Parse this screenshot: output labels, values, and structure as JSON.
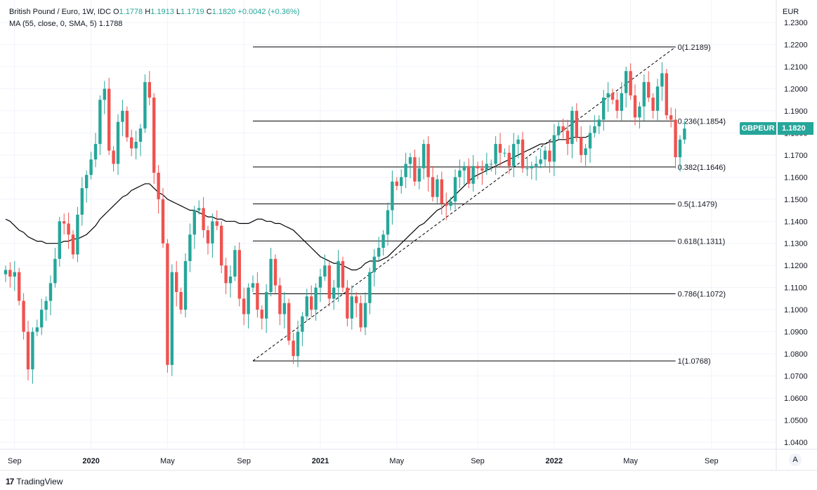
{
  "legend": {
    "title": "British Pound / Euro, 1W, IDC",
    "o_label": "O",
    "o_value": "1.1778",
    "h_label": "H",
    "h_value": "1.1913",
    "l_label": "L",
    "l_value": "1.1719",
    "c_label": "C",
    "c_value": "1.1820",
    "change": "+0.0042 (+0.36%)",
    "ma_label": "MA (55, close, 0, SMA, 5)",
    "ma_value": "1.1788"
  },
  "currency": "EUR",
  "symbol_badge": "GBPEUR",
  "price_badge": "1.1820",
  "footer": {
    "logo": "17",
    "brand": "TradingView"
  },
  "auto_button": "A",
  "colors": {
    "up": "#26a69a",
    "down": "#ef5350",
    "grid": "#f0f3fa",
    "line": "#000000",
    "axis_text": "#131722"
  },
  "chart_data": {
    "type": "candlestick",
    "interval": "1W",
    "ylim": [
      1.035,
      1.235
    ],
    "yticks": [
      "1.2300",
      "1.2200",
      "1.2100",
      "1.2000",
      "1.1900",
      "1.1800",
      "1.1700",
      "1.1600",
      "1.1500",
      "1.1400",
      "1.1300",
      "1.1200",
      "1.1100",
      "1.1000",
      "1.0900",
      "1.0800",
      "1.0700",
      "1.0600",
      "1.0500",
      "1.0400"
    ],
    "x_labels": [
      {
        "label": "Sep",
        "week": 2
      },
      {
        "label": "2020",
        "week": 19
      },
      {
        "label": "May",
        "week": 36
      },
      {
        "label": "Sep",
        "week": 53
      },
      {
        "label": "2021",
        "week": 70
      },
      {
        "label": "May",
        "week": 87
      },
      {
        "label": "Sep",
        "week": 105
      },
      {
        "label": "2022",
        "week": 122
      },
      {
        "label": "May",
        "week": 139
      },
      {
        "label": "Sep",
        "week": 157
      }
    ],
    "closes": [
      1.118,
      1.115,
      1.117,
      1.104,
      1.09,
      1.073,
      1.09,
      1.092,
      1.1,
      1.104,
      1.112,
      1.123,
      1.14,
      1.139,
      1.134,
      1.125,
      1.143,
      1.155,
      1.161,
      1.168,
      1.175,
      1.195,
      1.2,
      1.172,
      1.166,
      1.185,
      1.19,
      1.178,
      1.173,
      1.176,
      1.182,
      1.203,
      1.196,
      1.162,
      1.15,
      1.13,
      1.075,
      1.117,
      1.108,
      1.1,
      1.122,
      1.134,
      1.145,
      1.146,
      1.136,
      1.13,
      1.14,
      1.138,
      1.12,
      1.112,
      1.115,
      1.127,
      1.105,
      1.098,
      1.11,
      1.112,
      1.1,
      1.096,
      1.108,
      1.123,
      1.111,
      1.098,
      1.103,
      1.086,
      1.079,
      1.09,
      1.097,
      1.106,
      1.1,
      1.11,
      1.115,
      1.12,
      1.105,
      1.11,
      1.122,
      1.11,
      1.096,
      1.106,
      1.103,
      1.092,
      1.103,
      1.117,
      1.124,
      1.128,
      1.134,
      1.145,
      1.158,
      1.156,
      1.16,
      1.166,
      1.169,
      1.158,
      1.164,
      1.175,
      1.16,
      1.151,
      1.159,
      1.148,
      1.147,
      1.149,
      1.16,
      1.163,
      1.165,
      1.157,
      1.165,
      1.164,
      1.163,
      1.166,
      1.166,
      1.175,
      1.171,
      1.171,
      1.165,
      1.175,
      1.177,
      1.164,
      1.164,
      1.165,
      1.166,
      1.168,
      1.172,
      1.167,
      1.179,
      1.183,
      1.181,
      1.175,
      1.19,
      1.178,
      1.17,
      1.173,
      1.18,
      1.183,
      1.186,
      1.196,
      1.198,
      1.195,
      1.19,
      1.198,
      1.208,
      1.197,
      1.187,
      1.192,
      1.203,
      1.196,
      1.19,
      1.201,
      1.207,
      1.188,
      1.186,
      1.169,
      1.177,
      1.182
    ],
    "ma55": [
      1.141,
      1.14,
      1.138,
      1.136,
      1.135,
      1.133,
      1.132,
      1.131,
      1.131,
      1.13,
      1.13,
      1.13,
      1.13,
      1.131,
      1.131,
      1.132,
      1.132,
      1.133,
      1.134,
      1.136,
      1.138,
      1.141,
      1.143,
      1.145,
      1.147,
      1.149,
      1.151,
      1.152,
      1.154,
      1.155,
      1.156,
      1.157,
      1.157,
      1.155,
      1.153,
      1.152,
      1.15,
      1.149,
      1.148,
      1.147,
      1.146,
      1.145,
      1.145,
      1.144,
      1.143,
      1.142,
      1.142,
      1.141,
      1.141,
      1.14,
      1.14,
      1.14,
      1.139,
      1.139,
      1.139,
      1.14,
      1.141,
      1.141,
      1.14,
      1.14,
      1.139,
      1.139,
      1.138,
      1.137,
      1.136,
      1.134,
      1.132,
      1.13,
      1.128,
      1.126,
      1.124,
      1.123,
      1.122,
      1.121,
      1.121,
      1.12,
      1.119,
      1.118,
      1.118,
      1.119,
      1.121,
      1.122,
      1.122,
      1.122,
      1.123,
      1.124,
      1.126,
      1.128,
      1.13,
      1.132,
      1.134,
      1.136,
      1.138,
      1.139,
      1.141,
      1.143,
      1.145,
      1.146,
      1.148,
      1.15,
      1.152,
      1.154,
      1.156,
      1.158,
      1.16,
      1.161,
      1.162,
      1.163,
      1.164,
      1.165,
      1.166,
      1.167,
      1.168,
      1.169,
      1.17,
      1.171,
      1.172,
      1.173,
      1.174,
      1.175,
      1.175,
      1.176,
      1.176,
      1.177,
      1.177,
      1.177,
      1.178,
      1.178,
      1.178,
      1.178,
      1.179
    ],
    "fibonacci": [
      {
        "label": "0(1.2189)",
        "value": 1.2189
      },
      {
        "label": "0.236(1.1854)",
        "value": 1.1854
      },
      {
        "label": "0.382(1.1646)",
        "value": 1.1646
      },
      {
        "label": "0.5(1.1479)",
        "value": 1.1479
      },
      {
        "label": "0.618(1.1311)",
        "value": 1.1311
      },
      {
        "label": "0.786(1.1072)",
        "value": 1.1072
      },
      {
        "label": "1(1.0768)",
        "value": 1.0768
      }
    ],
    "fib_start_week": 55,
    "fib_end_week": 149,
    "trend_line": {
      "from": {
        "week": 55,
        "value": 1.0768
      },
      "to": {
        "week": 149,
        "value": 1.2189
      }
    }
  }
}
